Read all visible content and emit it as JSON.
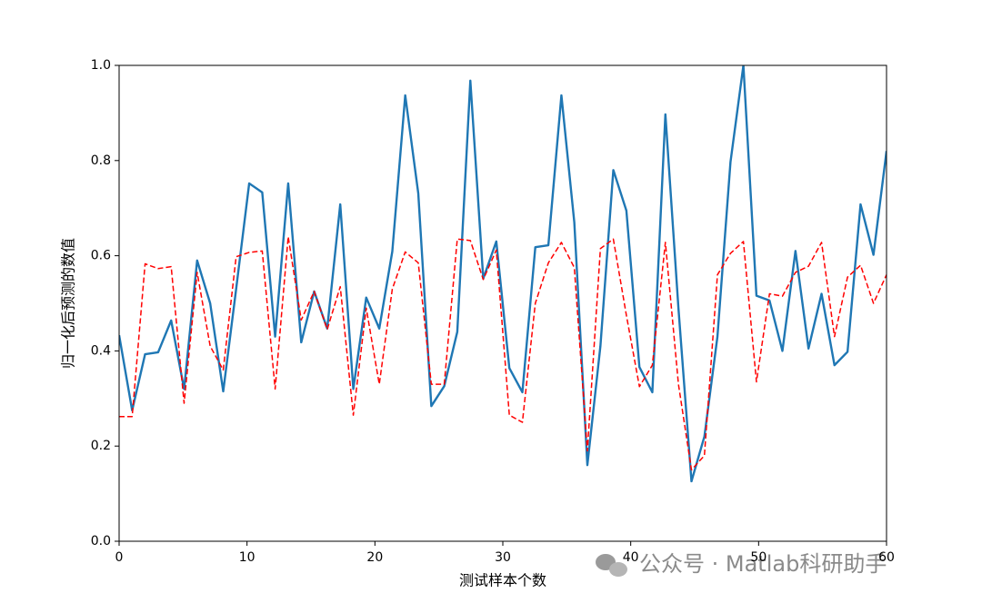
{
  "chart_data": {
    "type": "line",
    "xlabel": "测试样本个数",
    "ylabel": "归一化后预测的数值",
    "x": [
      0,
      1.02,
      2.03,
      3.05,
      4.07,
      5.08,
      6.1,
      7.12,
      8.14,
      9.15,
      10.17,
      11.19,
      12.2,
      13.22,
      14.24,
      15.25,
      16.27,
      17.29,
      18.31,
      19.32,
      20.34,
      21.36,
      22.37,
      23.39,
      24.41,
      25.42,
      26.44,
      27.46,
      28.47,
      29.49,
      30.51,
      31.53,
      32.54,
      33.56,
      34.58,
      35.59,
      36.61,
      37.63,
      38.64,
      39.66,
      40.68,
      41.69,
      42.71,
      43.73,
      44.75,
      45.76,
      46.78,
      47.8,
      48.81,
      49.83,
      50.85,
      51.86,
      52.88,
      53.9,
      54.92,
      55.93,
      56.95,
      57.97,
      58.98,
      60
    ],
    "series": [
      {
        "color": "#1f77b4",
        "dashed": false,
        "values": [
          0.433,
          0.275,
          0.393,
          0.397,
          0.464,
          0.32,
          0.59,
          0.5,
          0.315,
          0.53,
          0.752,
          0.733,
          0.43,
          0.752,
          0.418,
          0.525,
          0.447,
          0.708,
          0.32,
          0.512,
          0.447,
          0.609,
          0.937,
          0.731,
          0.284,
          0.326,
          0.44,
          0.968,
          0.552,
          0.63,
          0.364,
          0.313,
          0.618,
          0.622,
          0.937,
          0.67,
          0.16,
          0.41,
          0.78,
          0.695,
          0.366,
          0.313,
          0.897,
          0.49,
          0.126,
          0.22,
          0.43,
          0.797,
          1.0,
          0.516,
          0.506,
          0.4,
          0.61,
          0.405,
          0.52,
          0.37,
          0.398,
          0.708,
          0.602,
          0.82
        ]
      },
      {
        "color": "#ff0000",
        "dashed": true,
        "values": [
          0.262,
          0.262,
          0.583,
          0.573,
          0.577,
          0.29,
          0.565,
          0.41,
          0.36,
          0.598,
          0.607,
          0.61,
          0.32,
          0.64,
          0.465,
          0.525,
          0.445,
          0.535,
          0.265,
          0.49,
          0.33,
          0.53,
          0.608,
          0.585,
          0.33,
          0.33,
          0.635,
          0.632,
          0.55,
          0.612,
          0.265,
          0.25,
          0.5,
          0.585,
          0.628,
          0.575,
          0.19,
          0.615,
          0.635,
          0.475,
          0.325,
          0.37,
          0.628,
          0.33,
          0.15,
          0.18,
          0.56,
          0.605,
          0.63,
          0.335,
          0.52,
          0.515,
          0.565,
          0.578,
          0.628,
          0.43,
          0.555,
          0.58,
          0.5,
          0.56
        ]
      }
    ],
    "xlim": [
      0,
      60
    ],
    "xticks": [
      0,
      10,
      20,
      30,
      40,
      50,
      60
    ],
    "ylim": [
      0,
      1.0
    ],
    "yticks": [
      {
        "value": 0,
        "label": "0.0"
      },
      0.2,
      0.4,
      0.6,
      0.8,
      {
        "value": 1.0,
        "label": "1.0"
      }
    ],
    "grid": false,
    "watermark": "公众号 · Matlab科研助手"
  }
}
